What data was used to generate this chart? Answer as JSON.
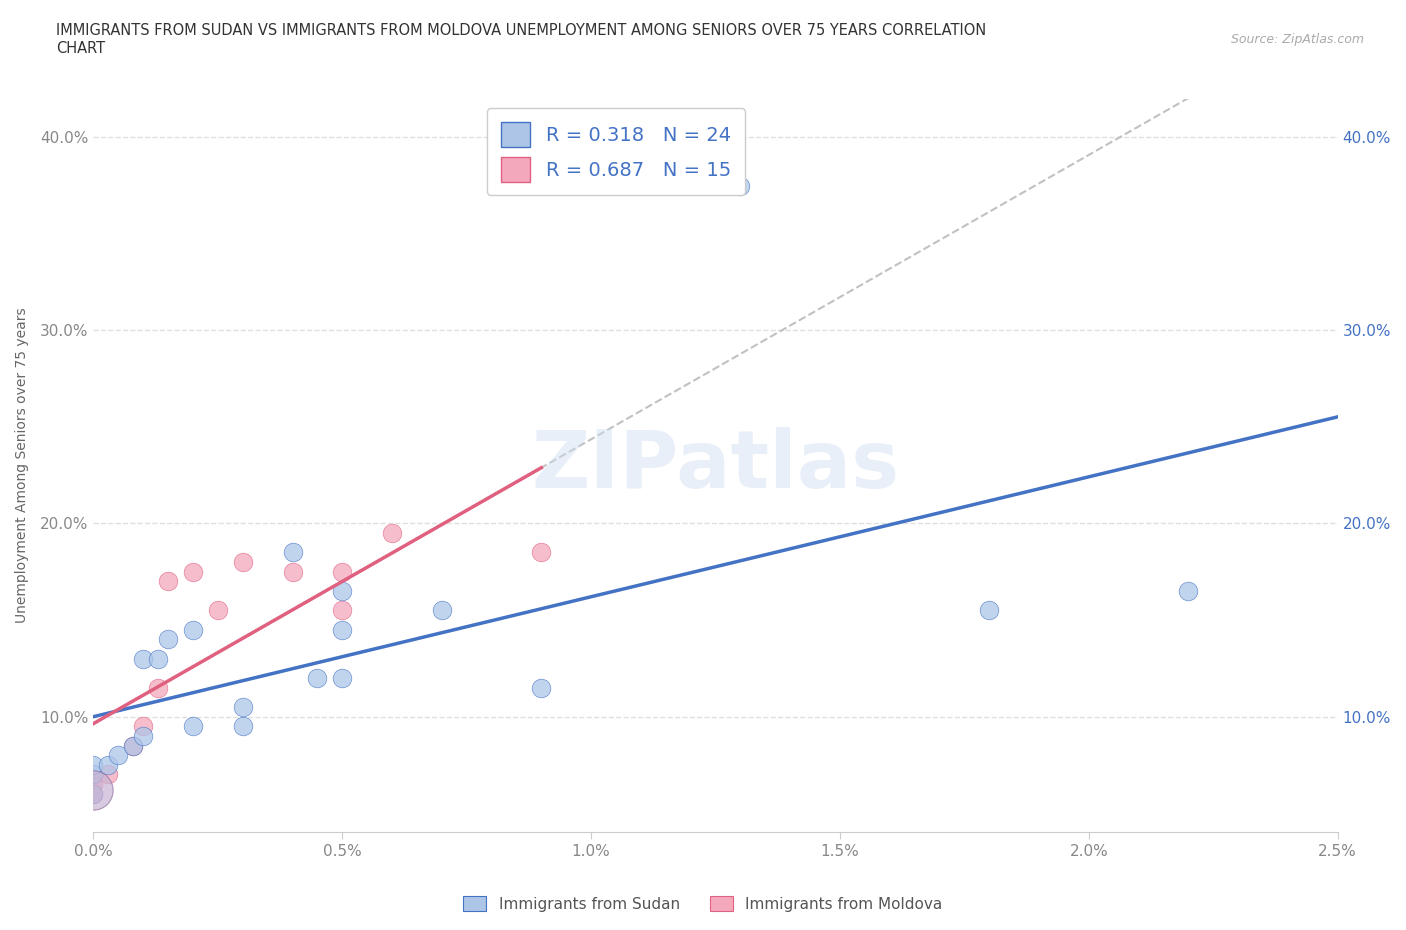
{
  "title": "IMMIGRANTS FROM SUDAN VS IMMIGRANTS FROM MOLDOVA UNEMPLOYMENT AMONG SENIORS OVER 75 YEARS CORRELATION\nCHART",
  "source": "Source: ZipAtlas.com",
  "xlabel": "",
  "ylabel": "Unemployment Among Seniors over 75 years",
  "legend_sudan": "Immigrants from Sudan",
  "legend_moldova": "Immigrants from Moldova",
  "sudan_R": "0.318",
  "sudan_N": "24",
  "moldova_R": "0.687",
  "moldova_N": "15",
  "xlim": [
    0.0,
    0.025
  ],
  "ylim": [
    0.04,
    0.42
  ],
  "xticks": [
    0.0,
    0.005,
    0.01,
    0.015,
    0.02,
    0.025
  ],
  "xtick_labels": [
    "0.0%",
    "0.5%",
    "1.0%",
    "1.5%",
    "2.0%",
    "2.5%"
  ],
  "yticks": [
    0.1,
    0.2,
    0.3,
    0.4
  ],
  "ytick_labels": [
    "10.0%",
    "20.0%",
    "30.0%",
    "40.0%"
  ],
  "color_sudan": "#adc6e8",
  "color_moldova": "#f4a8bc",
  "color_trendline_sudan": "#4472c4",
  "color_trendline_moldova": "#e06080",
  "color_dashed": "#bbbbbb",
  "sudan_x": [
    0.0,
    0.0,
    0.0,
    0.0003,
    0.0005,
    0.0008,
    0.001,
    0.001,
    0.0013,
    0.0015,
    0.002,
    0.002,
    0.003,
    0.003,
    0.004,
    0.0045,
    0.005,
    0.005,
    0.005,
    0.007,
    0.009,
    0.013,
    0.018,
    0.022
  ],
  "sudan_y": [
    0.06,
    0.07,
    0.075,
    0.075,
    0.08,
    0.085,
    0.09,
    0.13,
    0.13,
    0.14,
    0.095,
    0.145,
    0.095,
    0.105,
    0.185,
    0.12,
    0.12,
    0.145,
    0.165,
    0.155,
    0.115,
    0.375,
    0.155,
    0.165
  ],
  "moldova_x": [
    0.0,
    0.0,
    0.0003,
    0.0008,
    0.001,
    0.0013,
    0.0015,
    0.002,
    0.0025,
    0.003,
    0.004,
    0.005,
    0.005,
    0.006,
    0.009
  ],
  "moldova_y": [
    0.06,
    0.065,
    0.07,
    0.085,
    0.095,
    0.115,
    0.17,
    0.175,
    0.155,
    0.18,
    0.175,
    0.155,
    0.175,
    0.195,
    0.185
  ],
  "watermark": "ZIPatlas",
  "background_color": "#ffffff",
  "grid_color": "#e0e0e0",
  "legend_text_color": "#4472c4",
  "title_color": "#333333",
  "tick_color": "#888888"
}
